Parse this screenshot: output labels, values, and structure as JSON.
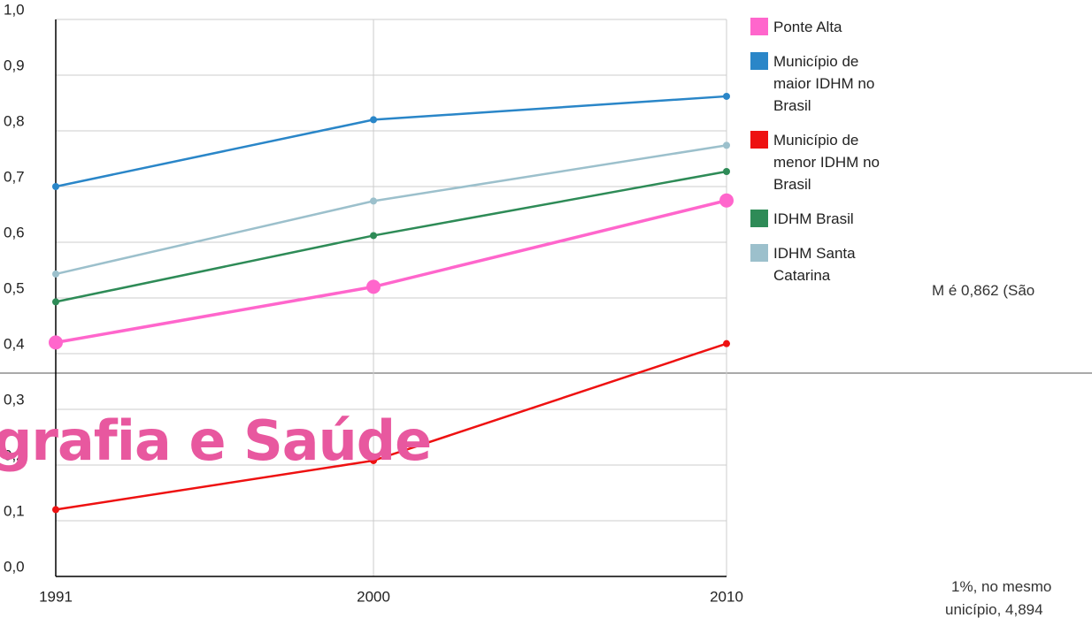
{
  "chart_data": {
    "type": "line",
    "x": [
      1991,
      2000,
      2010
    ],
    "xlim": [
      1991,
      2010
    ],
    "xticks": [
      1991,
      2000,
      2010
    ],
    "ylim": [
      0,
      1
    ],
    "yticks": [
      {
        "value": 0,
        "label": "0,0"
      },
      {
        "value": 0.1,
        "label": "0,1"
      },
      {
        "value": 0.2,
        "label": "0,2"
      },
      {
        "value": 0.3,
        "label": "0,3"
      },
      {
        "value": 0.4,
        "label": "0,4"
      },
      {
        "value": 0.5,
        "label": "0,5"
      },
      {
        "value": 0.6,
        "label": "0,6"
      },
      {
        "value": 0.7,
        "label": "0,7"
      },
      {
        "value": 0.8,
        "label": "0,8"
      },
      {
        "value": 0.9,
        "label": "0,9"
      },
      {
        "value": 1,
        "label": "1,0"
      }
    ],
    "grid": true,
    "legend": "right",
    "series": [
      {
        "name": "Ponte Alta",
        "color": "#ff66cc",
        "values": [
          0.42,
          0.52,
          0.675
        ]
      },
      {
        "name": "Município de maior IDHM no Brasil",
        "color": "#2a86c8",
        "values": [
          0.7,
          0.82,
          0.862
        ]
      },
      {
        "name": "Município de menor IDHM no Brasil",
        "color": "#ee1111",
        "values": [
          0.12,
          0.208,
          0.418
        ]
      },
      {
        "name": "IDHM Brasil",
        "color": "#2e8b57",
        "values": [
          0.493,
          0.612,
          0.727
        ]
      },
      {
        "name": "IDHM Santa Catarina",
        "color": "#9cc0cc",
        "values": [
          0.543,
          0.674,
          0.774
        ]
      }
    ]
  },
  "page": {
    "heading": "grafia e Saúde",
    "fragments": [
      "M é 0,862 (São",
      "1%, no mesmo",
      "unicípio, 4,894"
    ]
  }
}
